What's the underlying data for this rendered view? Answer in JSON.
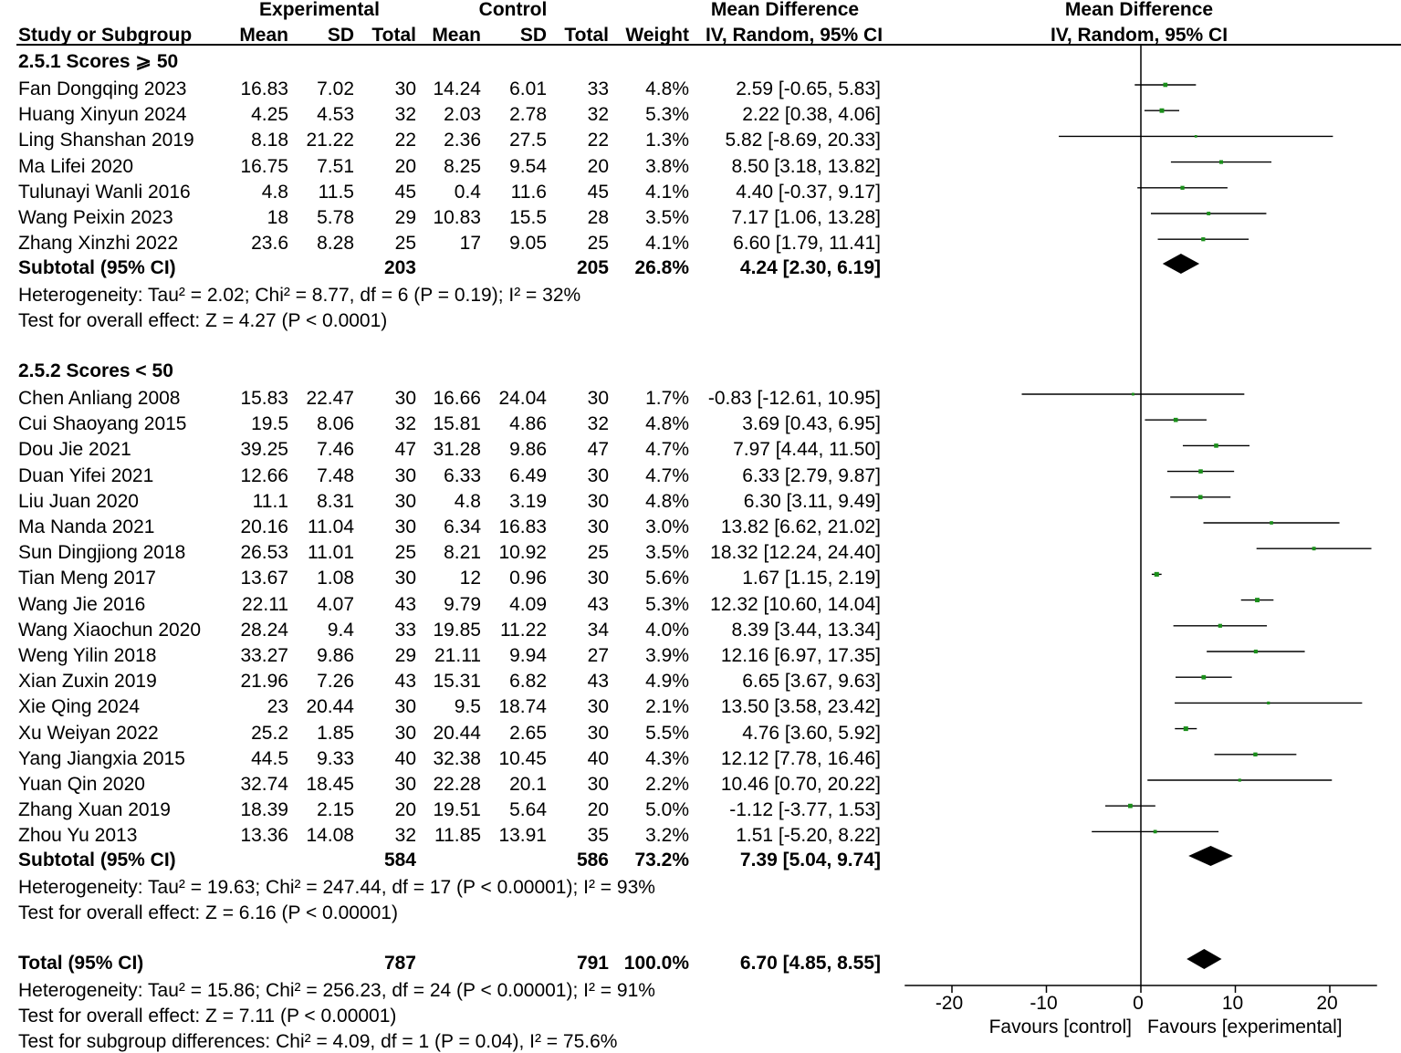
{
  "headers": {
    "experimental": "Experimental",
    "control": "Control",
    "mean_difference": "Mean Difference",
    "mean_difference_plot": "Mean Difference",
    "study": "Study or Subgroup",
    "mean_e": "Mean",
    "sd_e": "SD",
    "total_e": "Total",
    "mean_c": "Mean",
    "sd_c": "SD",
    "total_c": "Total",
    "weight": "Weight",
    "method": "IV, Random, 95% CI",
    "method_plot": "IV, Random, 95% CI"
  },
  "subgroups": [
    {
      "title": "2.5.1 Scores ⩾ 50",
      "studies": [
        {
          "name": "Fan Dongqing 2023",
          "mean_e": "16.83",
          "sd_e": "7.02",
          "total_e": "30",
          "mean_c": "14.24",
          "sd_c": "6.01",
          "total_c": "33",
          "weight": "4.8%",
          "ci": "2.59 [-0.65, 5.83]",
          "md": 2.59,
          "lo": -0.65,
          "hi": 5.83,
          "w": 4.8
        },
        {
          "name": "Huang Xinyun 2024",
          "mean_e": "4.25",
          "sd_e": "4.53",
          "total_e": "32",
          "mean_c": "2.03",
          "sd_c": "2.78",
          "total_c": "32",
          "weight": "5.3%",
          "ci": "2.22 [0.38, 4.06]",
          "md": 2.22,
          "lo": 0.38,
          "hi": 4.06,
          "w": 5.3
        },
        {
          "name": "Ling Shanshan 2019",
          "mean_e": "8.18",
          "sd_e": "21.22",
          "total_e": "22",
          "mean_c": "2.36",
          "sd_c": "27.5",
          "total_c": "22",
          "weight": "1.3%",
          "ci": "5.82 [-8.69, 20.33]",
          "md": 5.82,
          "lo": -8.69,
          "hi": 20.33,
          "w": 1.3
        },
        {
          "name": "Ma Lifei 2020",
          "mean_e": "16.75",
          "sd_e": "7.51",
          "total_e": "20",
          "mean_c": "8.25",
          "sd_c": "9.54",
          "total_c": "20",
          "weight": "3.8%",
          "ci": "8.50 [3.18, 13.82]",
          "md": 8.5,
          "lo": 3.18,
          "hi": 13.82,
          "w": 3.8
        },
        {
          "name": "Tulunayi Wanli 2016",
          "mean_e": "4.8",
          "sd_e": "11.5",
          "total_e": "45",
          "mean_c": "0.4",
          "sd_c": "11.6",
          "total_c": "45",
          "weight": "4.1%",
          "ci": "4.40 [-0.37, 9.17]",
          "md": 4.4,
          "lo": -0.37,
          "hi": 9.17,
          "w": 4.1
        },
        {
          "name": "Wang Peixin 2023",
          "mean_e": "18",
          "sd_e": "5.78",
          "total_e": "29",
          "mean_c": "10.83",
          "sd_c": "15.5",
          "total_c": "28",
          "weight": "3.5%",
          "ci": "7.17 [1.06, 13.28]",
          "md": 7.17,
          "lo": 1.06,
          "hi": 13.28,
          "w": 3.5
        },
        {
          "name": "Zhang Xinzhi 2022",
          "mean_e": "23.6",
          "sd_e": "8.28",
          "total_e": "25",
          "mean_c": "17",
          "sd_c": "9.05",
          "total_c": "25",
          "weight": "4.1%",
          "ci": "6.60 [1.79, 11.41]",
          "md": 6.6,
          "lo": 1.79,
          "hi": 11.41,
          "w": 4.1
        }
      ],
      "subtotal": {
        "label": "Subtotal (95% CI)",
        "total_e": "203",
        "total_c": "205",
        "weight": "26.8%",
        "ci": "4.24 [2.30, 6.19]",
        "md": 4.24,
        "lo": 2.3,
        "hi": 6.19
      },
      "heterogeneity": "Heterogeneity: Tau² = 2.02; Chi² = 8.77, df = 6 (P = 0.19); I² = 32%",
      "overall": "Test for overall effect: Z = 4.27 (P < 0.0001)"
    },
    {
      "title": "2.5.2 Scores < 50",
      "studies": [
        {
          "name": "Chen Anliang 2008",
          "mean_e": "15.83",
          "sd_e": "22.47",
          "total_e": "30",
          "mean_c": "16.66",
          "sd_c": "24.04",
          "total_c": "30",
          "weight": "1.7%",
          "ci": "-0.83 [-12.61, 10.95]",
          "md": -0.83,
          "lo": -12.61,
          "hi": 10.95,
          "w": 1.7
        },
        {
          "name": "Cui Shaoyang 2015",
          "mean_e": "19.5",
          "sd_e": "8.06",
          "total_e": "32",
          "mean_c": "15.81",
          "sd_c": "4.86",
          "total_c": "32",
          "weight": "4.8%",
          "ci": "3.69 [0.43, 6.95]",
          "md": 3.69,
          "lo": 0.43,
          "hi": 6.95,
          "w": 4.8
        },
        {
          "name": "Dou Jie 2021",
          "mean_e": "39.25",
          "sd_e": "7.46",
          "total_e": "47",
          "mean_c": "31.28",
          "sd_c": "9.86",
          "total_c": "47",
          "weight": "4.7%",
          "ci": "7.97 [4.44, 11.50]",
          "md": 7.97,
          "lo": 4.44,
          "hi": 11.5,
          "w": 4.7
        },
        {
          "name": "Duan Yifei 2021",
          "mean_e": "12.66",
          "sd_e": "7.48",
          "total_e": "30",
          "mean_c": "6.33",
          "sd_c": "6.49",
          "total_c": "30",
          "weight": "4.7%",
          "ci": "6.33 [2.79, 9.87]",
          "md": 6.33,
          "lo": 2.79,
          "hi": 9.87,
          "w": 4.7
        },
        {
          "name": "Liu Juan 2020",
          "mean_e": "11.1",
          "sd_e": "8.31",
          "total_e": "30",
          "mean_c": "4.8",
          "sd_c": "3.19",
          "total_c": "30",
          "weight": "4.8%",
          "ci": "6.30 [3.11, 9.49]",
          "md": 6.3,
          "lo": 3.11,
          "hi": 9.49,
          "w": 4.8
        },
        {
          "name": "Ma Nanda 2021",
          "mean_e": "20.16",
          "sd_e": "11.04",
          "total_e": "30",
          "mean_c": "6.34",
          "sd_c": "16.83",
          "total_c": "30",
          "weight": "3.0%",
          "ci": "13.82 [6.62, 21.02]",
          "md": 13.82,
          "lo": 6.62,
          "hi": 21.02,
          "w": 3.0
        },
        {
          "name": "Sun Dingjiong 2018",
          "mean_e": "26.53",
          "sd_e": "11.01",
          "total_e": "25",
          "mean_c": "8.21",
          "sd_c": "10.92",
          "total_c": "25",
          "weight": "3.5%",
          "ci": "18.32 [12.24, 24.40]",
          "md": 18.32,
          "lo": 12.24,
          "hi": 24.4,
          "w": 3.5
        },
        {
          "name": "Tian Meng 2017",
          "mean_e": "13.67",
          "sd_e": "1.08",
          "total_e": "30",
          "mean_c": "12",
          "sd_c": "0.96",
          "total_c": "30",
          "weight": "5.6%",
          "ci": "1.67 [1.15, 2.19]",
          "md": 1.67,
          "lo": 1.15,
          "hi": 2.19,
          "w": 5.6
        },
        {
          "name": "Wang Jie 2016",
          "mean_e": "22.11",
          "sd_e": "4.07",
          "total_e": "43",
          "mean_c": "9.79",
          "sd_c": "4.09",
          "total_c": "43",
          "weight": "5.3%",
          "ci": "12.32 [10.60, 14.04]",
          "md": 12.32,
          "lo": 10.6,
          "hi": 14.04,
          "w": 5.3
        },
        {
          "name": "Wang Xiaochun 2020",
          "mean_e": "28.24",
          "sd_e": "9.4",
          "total_e": "33",
          "mean_c": "19.85",
          "sd_c": "11.22",
          "total_c": "34",
          "weight": "4.0%",
          "ci": "8.39 [3.44, 13.34]",
          "md": 8.39,
          "lo": 3.44,
          "hi": 13.34,
          "w": 4.0
        },
        {
          "name": "Weng Yilin 2018",
          "mean_e": "33.27",
          "sd_e": "9.86",
          "total_e": "29",
          "mean_c": "21.11",
          "sd_c": "9.94",
          "total_c": "27",
          "weight": "3.9%",
          "ci": "12.16 [6.97, 17.35]",
          "md": 12.16,
          "lo": 6.97,
          "hi": 17.35,
          "w": 3.9
        },
        {
          "name": "Xian Zuxin 2019",
          "mean_e": "21.96",
          "sd_e": "7.26",
          "total_e": "43",
          "mean_c": "15.31",
          "sd_c": "6.82",
          "total_c": "43",
          "weight": "4.9%",
          "ci": "6.65 [3.67, 9.63]",
          "md": 6.65,
          "lo": 3.67,
          "hi": 9.63,
          "w": 4.9
        },
        {
          "name": "Xie Qing 2024",
          "mean_e": "23",
          "sd_e": "20.44",
          "total_e": "30",
          "mean_c": "9.5",
          "sd_c": "18.74",
          "total_c": "30",
          "weight": "2.1%",
          "ci": "13.50 [3.58, 23.42]",
          "md": 13.5,
          "lo": 3.58,
          "hi": 23.42,
          "w": 2.1
        },
        {
          "name": "Xu Weiyan 2022",
          "mean_e": "25.2",
          "sd_e": "1.85",
          "total_e": "30",
          "mean_c": "20.44",
          "sd_c": "2.65",
          "total_c": "30",
          "weight": "5.5%",
          "ci": "4.76 [3.60, 5.92]",
          "md": 4.76,
          "lo": 3.6,
          "hi": 5.92,
          "w": 5.5
        },
        {
          "name": "Yang Jiangxia 2015",
          "mean_e": "44.5",
          "sd_e": "9.33",
          "total_e": "40",
          "mean_c": "32.38",
          "sd_c": "10.45",
          "total_c": "40",
          "weight": "4.3%",
          "ci": "12.12 [7.78, 16.46]",
          "md": 12.12,
          "lo": 7.78,
          "hi": 16.46,
          "w": 4.3
        },
        {
          "name": "Yuan Qin 2020",
          "mean_e": "32.74",
          "sd_e": "18.45",
          "total_e": "30",
          "mean_c": "22.28",
          "sd_c": "20.1",
          "total_c": "30",
          "weight": "2.2%",
          "ci": "10.46 [0.70, 20.22]",
          "md": 10.46,
          "lo": 0.7,
          "hi": 20.22,
          "w": 2.2
        },
        {
          "name": "Zhang Xuan 2019",
          "mean_e": "18.39",
          "sd_e": "2.15",
          "total_e": "20",
          "mean_c": "19.51",
          "sd_c": "5.64",
          "total_c": "20",
          "weight": "5.0%",
          "ci": "-1.12 [-3.77, 1.53]",
          "md": -1.12,
          "lo": -3.77,
          "hi": 1.53,
          "w": 5.0
        },
        {
          "name": "Zhou Yu 2013",
          "mean_e": "13.36",
          "sd_e": "14.08",
          "total_e": "32",
          "mean_c": "11.85",
          "sd_c": "13.91",
          "total_c": "35",
          "weight": "3.2%",
          "ci": "1.51 [-5.20, 8.22]",
          "md": 1.51,
          "lo": -5.2,
          "hi": 8.22,
          "w": 3.2
        }
      ],
      "subtotal": {
        "label": "Subtotal (95% CI)",
        "total_e": "584",
        "total_c": "586",
        "weight": "73.2%",
        "ci": "7.39 [5.04, 9.74]",
        "md": 7.39,
        "lo": 5.04,
        "hi": 9.74
      },
      "heterogeneity": "Heterogeneity: Tau² = 19.63; Chi² = 247.44, df = 17 (P < 0.00001); I² = 93%",
      "overall": "Test for overall effect: Z = 6.16 (P < 0.00001)"
    }
  ],
  "total": {
    "label": "Total (95% CI)",
    "total_e": "787",
    "total_c": "791",
    "weight": "100.0%",
    "ci": "6.70 [4.85, 8.55]",
    "md": 6.7,
    "lo": 4.85,
    "hi": 8.55
  },
  "footer": {
    "heterogeneity": "Heterogeneity: Tau² = 15.86; Chi² = 256.23, df = 24 (P < 0.00001); I² = 91%",
    "overall": "Test for overall effect: Z = 7.11 (P < 0.00001)",
    "subgroup": "Test for subgroup differences: Chi² = 4.09, df = 1 (P = 0.04), I² = 75.6%"
  },
  "chart_data": {
    "type": "forest",
    "xlim": [
      -25,
      25
    ],
    "ticks": [
      -20,
      -10,
      0,
      10,
      20
    ],
    "tick_labels": [
      "-20",
      "-10",
      "0",
      "10",
      "20"
    ],
    "favours_left": "Favours [control]",
    "favours_right": "Favours [experimental]",
    "square_color": "#1a8f1a",
    "diamond_color": "#000000"
  }
}
